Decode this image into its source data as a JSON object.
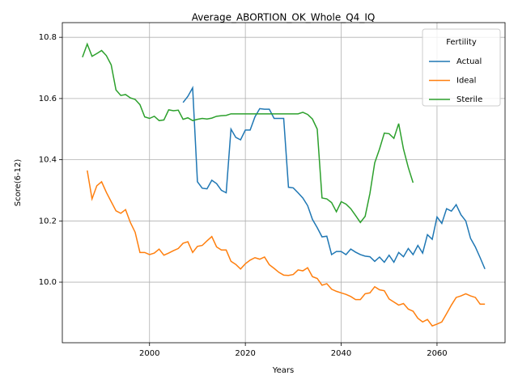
{
  "chart_data": {
    "type": "line",
    "title": "Average_ABORTION_OK_Whole_Q4_IQ",
    "x_label": "Years",
    "y_label": "Score(6-12)",
    "legend_title": "Fertility",
    "legend_loc": "upper right",
    "grid": true,
    "xlim": [
      1981.8,
      2074.2
    ],
    "ylim": [
      9.802,
      10.848
    ],
    "xticks": [
      2000,
      2020,
      2040,
      2060
    ],
    "yticks": [
      {
        "value": 10,
        "label": "10.0"
      },
      10.2,
      10.4,
      10.6,
      10.8
    ],
    "x": [
      1986,
      1987,
      1988,
      1989,
      1990,
      1991,
      1992,
      1993,
      1994,
      1995,
      1996,
      1997,
      1998,
      1999,
      2000,
      2001,
      2002,
      2003,
      2004,
      2005,
      2006,
      2007,
      2008,
      2009,
      2010,
      2011,
      2012,
      2013,
      2014,
      2015,
      2016,
      2017,
      2018,
      2019,
      2020,
      2021,
      2022,
      2023,
      2024,
      2025,
      2026,
      2027,
      2028,
      2029,
      2030,
      2031,
      2032,
      2033,
      2034,
      2035,
      2036,
      2037,
      2038,
      2039,
      2040,
      2041,
      2042,
      2043,
      2044,
      2045,
      2046,
      2047,
      2048,
      2049,
      2050,
      2051,
      2052,
      2053,
      2054,
      2055,
      2056,
      2057,
      2058,
      2059,
      2060,
      2061,
      2062,
      2063,
      2064,
      2065,
      2066,
      2067,
      2068,
      2069,
      2070
    ],
    "series": [
      {
        "name": "Actual",
        "color": "#1f77b4",
        "values": [
          null,
          null,
          null,
          null,
          null,
          null,
          null,
          null,
          null,
          null,
          null,
          null,
          null,
          null,
          null,
          null,
          null,
          null,
          null,
          null,
          null,
          10.587,
          10.607,
          10.635,
          10.328,
          10.307,
          10.305,
          10.333,
          10.322,
          10.3,
          10.292,
          10.5,
          10.473,
          10.465,
          10.497,
          10.497,
          10.54,
          10.567,
          10.565,
          10.565,
          10.535,
          10.535,
          10.535,
          10.31,
          10.308,
          10.292,
          10.275,
          10.25,
          10.205,
          10.178,
          10.148,
          10.15,
          10.09,
          10.1,
          10.1,
          10.09,
          10.108,
          10.098,
          10.09,
          10.085,
          10.083,
          10.068,
          10.082,
          10.065,
          10.088,
          10.065,
          10.097,
          10.083,
          10.11,
          10.09,
          10.12,
          10.095,
          10.155,
          10.14,
          10.213,
          10.192,
          10.24,
          10.232,
          10.253,
          10.22,
          10.2,
          10.143,
          10.115,
          10.08,
          10.043
        ]
      },
      {
        "name": "Ideal",
        "color": "#ff7f0e",
        "values": [
          null,
          10.365,
          10.272,
          10.315,
          10.328,
          10.293,
          10.263,
          10.233,
          10.225,
          10.237,
          10.195,
          10.163,
          10.097,
          10.097,
          10.09,
          10.095,
          10.108,
          10.088,
          10.095,
          10.103,
          10.11,
          10.127,
          10.132,
          10.097,
          10.117,
          10.12,
          10.135,
          10.149,
          10.115,
          10.105,
          10.105,
          10.068,
          10.058,
          10.043,
          10.06,
          10.072,
          10.08,
          10.075,
          10.082,
          10.057,
          10.045,
          10.032,
          10.023,
          10.022,
          10.025,
          10.04,
          10.037,
          10.047,
          10.018,
          10.012,
          9.99,
          9.995,
          9.977,
          9.97,
          9.965,
          9.96,
          9.953,
          9.943,
          9.943,
          9.962,
          9.965,
          9.985,
          9.975,
          9.972,
          9.945,
          9.935,
          9.925,
          9.93,
          9.912,
          9.905,
          9.882,
          9.87,
          9.878,
          9.857,
          9.863,
          9.87,
          9.897,
          9.925,
          9.95,
          9.955,
          9.962,
          9.955,
          9.95,
          9.928,
          9.928
        ]
      },
      {
        "name": "Sterile",
        "color": "#2ca02c",
        "values": [
          10.735,
          10.778,
          10.738,
          10.747,
          10.757,
          10.74,
          10.71,
          10.628,
          10.61,
          10.613,
          10.602,
          10.597,
          10.58,
          10.54,
          10.535,
          10.542,
          10.528,
          10.53,
          10.563,
          10.56,
          10.562,
          10.532,
          10.537,
          10.528,
          10.532,
          10.535,
          10.533,
          10.536,
          10.542,
          10.544,
          10.545,
          10.55,
          10.55,
          10.55,
          10.55,
          10.55,
          10.55,
          10.55,
          10.55,
          10.55,
          10.55,
          10.55,
          10.55,
          10.55,
          10.55,
          10.55,
          10.555,
          10.548,
          10.533,
          10.5,
          10.275,
          10.272,
          10.26,
          10.23,
          10.263,
          10.255,
          10.24,
          10.218,
          10.195,
          10.215,
          10.29,
          10.39,
          10.435,
          10.487,
          10.485,
          10.47,
          10.518,
          10.435,
          10.375,
          10.325,
          null,
          null,
          null,
          null,
          null,
          null,
          null,
          null,
          null,
          null,
          null,
          null,
          null,
          null,
          null
        ]
      }
    ]
  }
}
